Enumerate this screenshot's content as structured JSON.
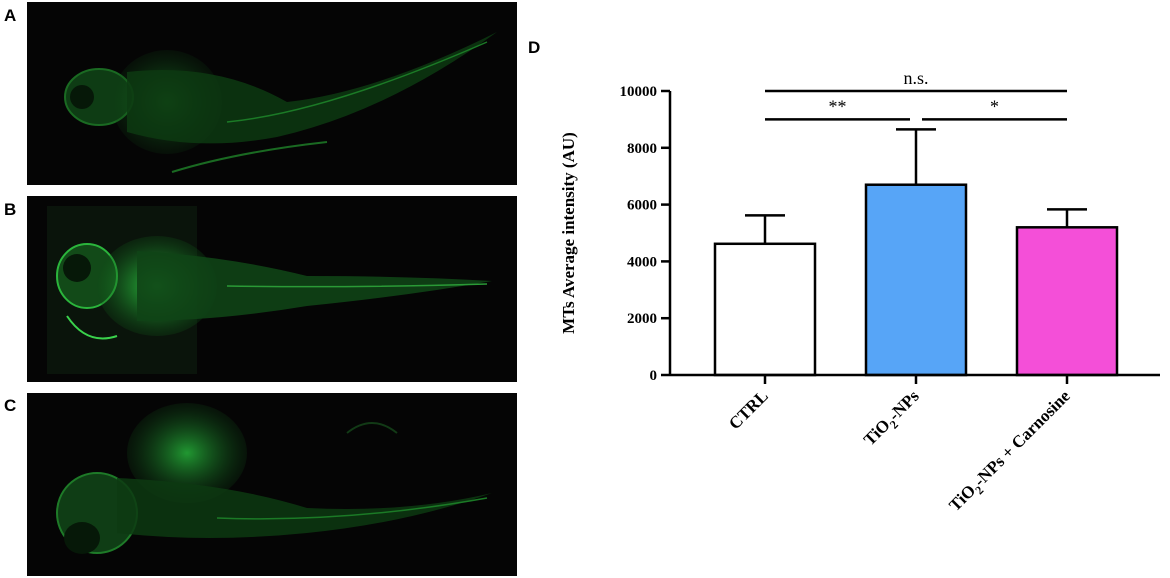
{
  "panels": {
    "a_label": "A",
    "b_label": "B",
    "c_label": "C",
    "d_label": "D"
  },
  "colors": {
    "fluorescence": "#1fcf3a",
    "ctrl_bar": "#ffffff",
    "tio2_bar": "#57a5f7",
    "carnosine_bar": "#f44fd8"
  },
  "chart_data": {
    "type": "bar",
    "ylabel": "MTs Average intensity (AU)",
    "ylim": [
      0,
      10000
    ],
    "yticks": [
      "0",
      "2000",
      "4000",
      "6000",
      "8000",
      "10000"
    ],
    "ytick_values": [
      0,
      2000,
      4000,
      6000,
      8000,
      10000
    ],
    "categories": [
      {
        "base": "CTRL"
      },
      {
        "base": "TiO",
        "sub": "2",
        "rest": "-NPs"
      },
      {
        "base": "TiO",
        "sub": "2",
        "rest": "-NPs + Carnosine"
      }
    ],
    "values": [
      4620,
      6700,
      5200
    ],
    "errors": [
      1000,
      1950,
      630
    ],
    "bar_colors": [
      "#ffffff",
      "#57a5f7",
      "#f44fd8"
    ],
    "significance": [
      {
        "from": 0,
        "to": 2,
        "label": "n.s.",
        "level": 10000
      },
      {
        "from": 0,
        "to": 1,
        "label": "**",
        "level": 9000
      },
      {
        "from": 1,
        "to": 2,
        "label": "*",
        "level": 9000
      }
    ]
  }
}
